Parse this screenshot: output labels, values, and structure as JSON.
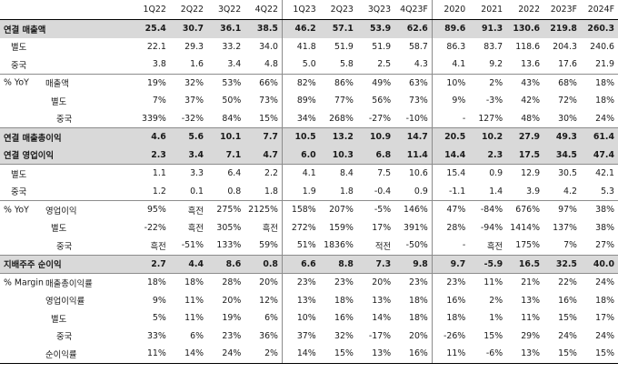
{
  "columns": [
    "1Q22",
    "2Q22",
    "3Q22",
    "4Q22",
    "1Q23",
    "2Q23",
    "3Q23",
    "4Q23F",
    "2020",
    "2021",
    "2022",
    "2023F",
    "2024F"
  ],
  "rows": [
    {
      "cat": "연결 매출액",
      "sub": "",
      "values": [
        "25.4",
        "30.7",
        "36.1",
        "38.5",
        "46.2",
        "57.1",
        "53.9",
        "62.6",
        "89.6",
        "91.3",
        "130.6",
        "219.8",
        "260.3"
      ]
    },
    {
      "cat": "",
      "sub": "별도",
      "values": [
        "22.1",
        "29.3",
        "33.2",
        "34.0",
        "41.8",
        "51.9",
        "51.9",
        "58.7",
        "86.3",
        "83.7",
        "118.6",
        "204.3",
        "240.6"
      ]
    },
    {
      "cat": "",
      "sub": "중국",
      "values": [
        "3.8",
        "1.6",
        "3.4",
        "4.8",
        "5.0",
        "5.8",
        "2.5",
        "4.3",
        "4.1",
        "9.2",
        "13.6",
        "17.6",
        "21.9"
      ]
    },
    {
      "cat": "% YoY",
      "sub": "매출액",
      "values": [
        "19%",
        "32%",
        "53%",
        "66%",
        "82%",
        "86%",
        "49%",
        "63%",
        "10%",
        "2%",
        "43%",
        "68%",
        "18%"
      ]
    },
    {
      "cat": "",
      "sub": "별도",
      "values": [
        "7%",
        "37%",
        "50%",
        "73%",
        "89%",
        "77%",
        "56%",
        "73%",
        "9%",
        "-3%",
        "42%",
        "72%",
        "18%"
      ]
    },
    {
      "cat": "",
      "sub": "중국",
      "values": [
        "339%",
        "-32%",
        "84%",
        "15%",
        "34%",
        "268%",
        "-27%",
        "-10%",
        "-",
        "127%",
        "48%",
        "30%",
        "24%"
      ]
    },
    {
      "cat": "연결 매출총이익",
      "sub": "",
      "values": [
        "4.6",
        "5.6",
        "10.1",
        "7.7",
        "10.5",
        "13.2",
        "10.9",
        "14.7",
        "20.5",
        "10.2",
        "27.9",
        "49.3",
        "61.4"
      ]
    },
    {
      "cat": "연결 영업이익",
      "sub": "",
      "values": [
        "2.3",
        "3.4",
        "7.1",
        "4.7",
        "6.0",
        "10.3",
        "6.8",
        "11.4",
        "14.4",
        "2.3",
        "17.5",
        "34.5",
        "47.4"
      ]
    },
    {
      "cat": "",
      "sub": "별도",
      "values": [
        "1.1",
        "3.3",
        "6.4",
        "2.2",
        "4.1",
        "8.4",
        "7.5",
        "10.6",
        "15.4",
        "0.9",
        "12.9",
        "30.5",
        "42.1"
      ]
    },
    {
      "cat": "",
      "sub": "중국",
      "values": [
        "1.2",
        "0.1",
        "0.8",
        "1.8",
        "1.9",
        "1.8",
        "-0.4",
        "0.9",
        "-1.1",
        "1.4",
        "3.9",
        "4.2",
        "5.3"
      ]
    },
    {
      "cat": "% YoY",
      "sub": "영업이익",
      "values": [
        "95%",
        "흑전",
        "275%",
        "2125%",
        "158%",
        "207%",
        "-5%",
        "146%",
        "47%",
        "-84%",
        "676%",
        "97%",
        "38%"
      ]
    },
    {
      "cat": "",
      "sub": "별도",
      "values": [
        "-22%",
        "흑전",
        "305%",
        "흑전",
        "272%",
        "159%",
        "17%",
        "391%",
        "28%",
        "-94%",
        "1414%",
        "137%",
        "38%"
      ]
    },
    {
      "cat": "",
      "sub": "중국",
      "values": [
        "흑전",
        "-51%",
        "133%",
        "59%",
        "51%",
        "1836%",
        "적전",
        "-50%",
        "-",
        "흑전",
        "175%",
        "7%",
        "27%"
      ]
    },
    {
      "cat": "지배주주 순이익",
      "sub": "",
      "values": [
        "2.7",
        "4.4",
        "8.6",
        "0.8",
        "6.6",
        "8.8",
        "7.3",
        "9.8",
        "9.7",
        "-5.9",
        "16.5",
        "32.5",
        "40.0"
      ]
    },
    {
      "cat": "% Margin",
      "sub": "매출총이익률",
      "values": [
        "18%",
        "18%",
        "28%",
        "20%",
        "23%",
        "23%",
        "20%",
        "23%",
        "23%",
        "11%",
        "21%",
        "22%",
        "24%"
      ]
    },
    {
      "cat": "",
      "sub": "영업이익률",
      "values": [
        "9%",
        "11%",
        "20%",
        "12%",
        "13%",
        "18%",
        "13%",
        "18%",
        "16%",
        "2%",
        "13%",
        "16%",
        "18%"
      ]
    },
    {
      "cat": "",
      "sub": "별도",
      "values": [
        "5%",
        "11%",
        "19%",
        "6%",
        "10%",
        "16%",
        "14%",
        "18%",
        "18%",
        "1%",
        "11%",
        "15%",
        "17%"
      ]
    },
    {
      "cat": "",
      "sub": "중국",
      "values": [
        "33%",
        "6%",
        "23%",
        "36%",
        "37%",
        "32%",
        "-17%",
        "20%",
        "-26%",
        "15%",
        "29%",
        "24%",
        "24%"
      ]
    },
    {
      "cat": "",
      "sub": "순이익률",
      "values": [
        "11%",
        "14%",
        "24%",
        "2%",
        "14%",
        "15%",
        "13%",
        "16%",
        "11%",
        "-6%",
        "13%",
        "15%",
        "15%"
      ]
    }
  ]
}
